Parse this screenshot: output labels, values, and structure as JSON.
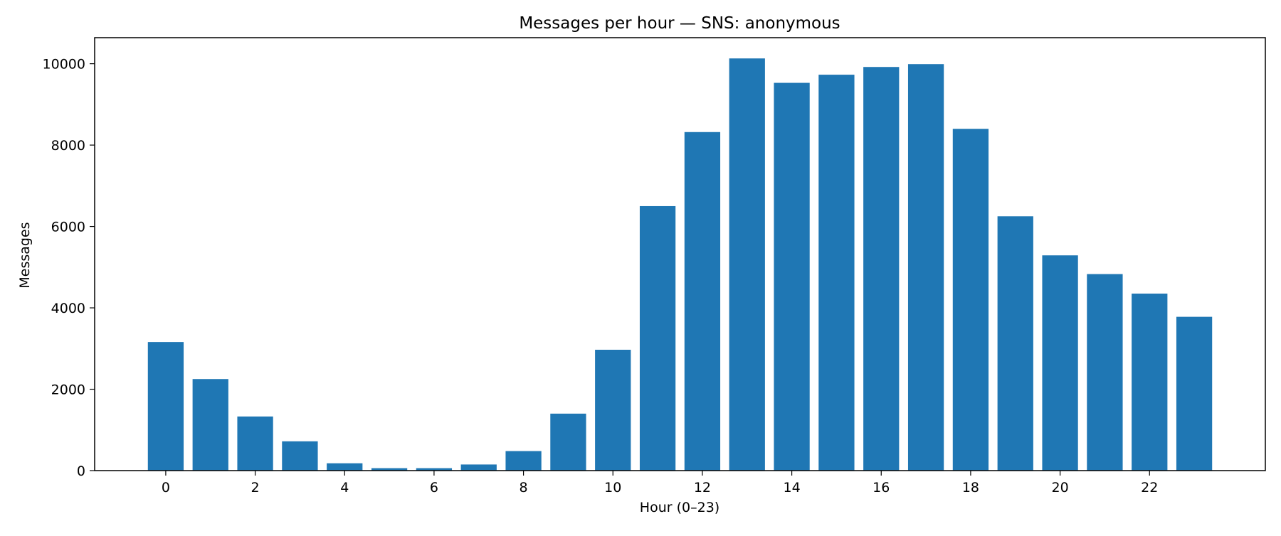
{
  "chart_data": {
    "type": "bar",
    "title": "Messages per hour — SNS: anonymous",
    "xlabel": "Hour (0–23)",
    "ylabel": "Messages",
    "categories": [
      "0",
      "1",
      "2",
      "3",
      "4",
      "5",
      "6",
      "7",
      "8",
      "9",
      "10",
      "11",
      "12",
      "13",
      "14",
      "15",
      "16",
      "17",
      "18",
      "19",
      "20",
      "21",
      "22",
      "23"
    ],
    "x_tick_labels": [
      "0",
      "2",
      "4",
      "6",
      "8",
      "10",
      "12",
      "14",
      "16",
      "18",
      "20",
      "22"
    ],
    "y_tick_labels": [
      "0",
      "2000",
      "4000",
      "6000",
      "8000",
      "10000"
    ],
    "values": [
      3160,
      2250,
      1330,
      720,
      180,
      60,
      60,
      150,
      480,
      1400,
      2970,
      6500,
      8320,
      10130,
      9530,
      9730,
      9920,
      9990,
      8400,
      6250,
      5290,
      4830,
      4350,
      3780
    ],
    "xlim": [
      -1.59,
      24.59
    ],
    "ylim": [
      0,
      10640
    ],
    "bar_color": "#1f77b4",
    "grid": false,
    "legend": "none"
  }
}
